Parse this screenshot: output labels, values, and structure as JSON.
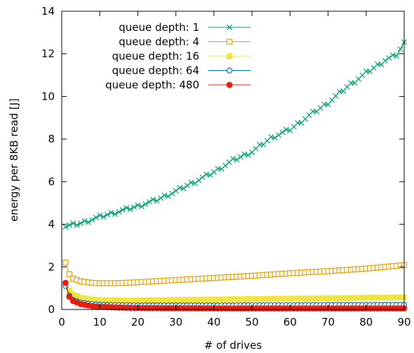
{
  "chart_data": {
    "type": "line",
    "xlabel": "# of drives",
    "ylabel": "energy per 8KB read [J]",
    "xlim": [
      0,
      90
    ],
    "ylim": [
      0,
      14
    ],
    "xticks": [
      0,
      10,
      20,
      30,
      40,
      50,
      60,
      70,
      80,
      90
    ],
    "yticks": [
      0,
      2,
      4,
      6,
      8,
      10,
      12,
      14
    ],
    "grid": false,
    "legend_position": "top-left",
    "series": [
      {
        "name": "queue depth: 1",
        "color": "#009e73",
        "marker": "cross",
        "x": [
          1,
          5,
          10,
          15,
          20,
          25,
          30,
          35,
          40,
          45,
          50,
          55,
          60,
          65,
          70,
          75,
          80,
          85,
          88,
          90
        ],
        "y": [
          3.9,
          4.05,
          4.35,
          4.6,
          4.85,
          5.15,
          5.55,
          6.0,
          6.45,
          7.0,
          7.4,
          8.05,
          8.45,
          9.1,
          9.7,
          10.45,
          11.1,
          11.7,
          11.95,
          12.5
        ]
      },
      {
        "name": "queue depth: 4",
        "color": "#e69f00",
        "marker": "square-open",
        "x": [
          1,
          2,
          3,
          5,
          8,
          10,
          15,
          20,
          30,
          40,
          50,
          60,
          70,
          80,
          90
        ],
        "y": [
          2.2,
          1.65,
          1.45,
          1.32,
          1.25,
          1.23,
          1.24,
          1.28,
          1.38,
          1.48,
          1.58,
          1.7,
          1.8,
          1.92,
          2.08
        ]
      },
      {
        "name": "queue depth: 16",
        "color": "#f0e442",
        "marker": "square-filled",
        "x": [
          1,
          2,
          3,
          5,
          8,
          10,
          15,
          20,
          30,
          40,
          50,
          60,
          70,
          80,
          90
        ],
        "y": [
          1.2,
          0.9,
          0.7,
          0.55,
          0.47,
          0.44,
          0.43,
          0.43,
          0.45,
          0.47,
          0.49,
          0.51,
          0.53,
          0.55,
          0.57
        ]
      },
      {
        "name": "queue depth: 64",
        "color": "#0072b2",
        "marker": "circle-open",
        "x": [
          1,
          2,
          3,
          5,
          8,
          10,
          15,
          20,
          30,
          40,
          50,
          60,
          70,
          80,
          90
        ],
        "y": [
          1.1,
          0.65,
          0.45,
          0.32,
          0.25,
          0.22,
          0.2,
          0.19,
          0.19,
          0.19,
          0.2,
          0.2,
          0.21,
          0.21,
          0.22
        ]
      },
      {
        "name": "queue depth: 480",
        "color": "#e51e10",
        "marker": "circle-filled",
        "x": [
          1,
          2,
          3,
          5,
          8,
          10,
          15,
          20,
          30,
          40,
          50,
          60,
          70,
          80,
          90
        ],
        "y": [
          1.25,
          0.6,
          0.4,
          0.25,
          0.16,
          0.13,
          0.09,
          0.07,
          0.06,
          0.05,
          0.05,
          0.05,
          0.05,
          0.05,
          0.05
        ]
      }
    ]
  }
}
